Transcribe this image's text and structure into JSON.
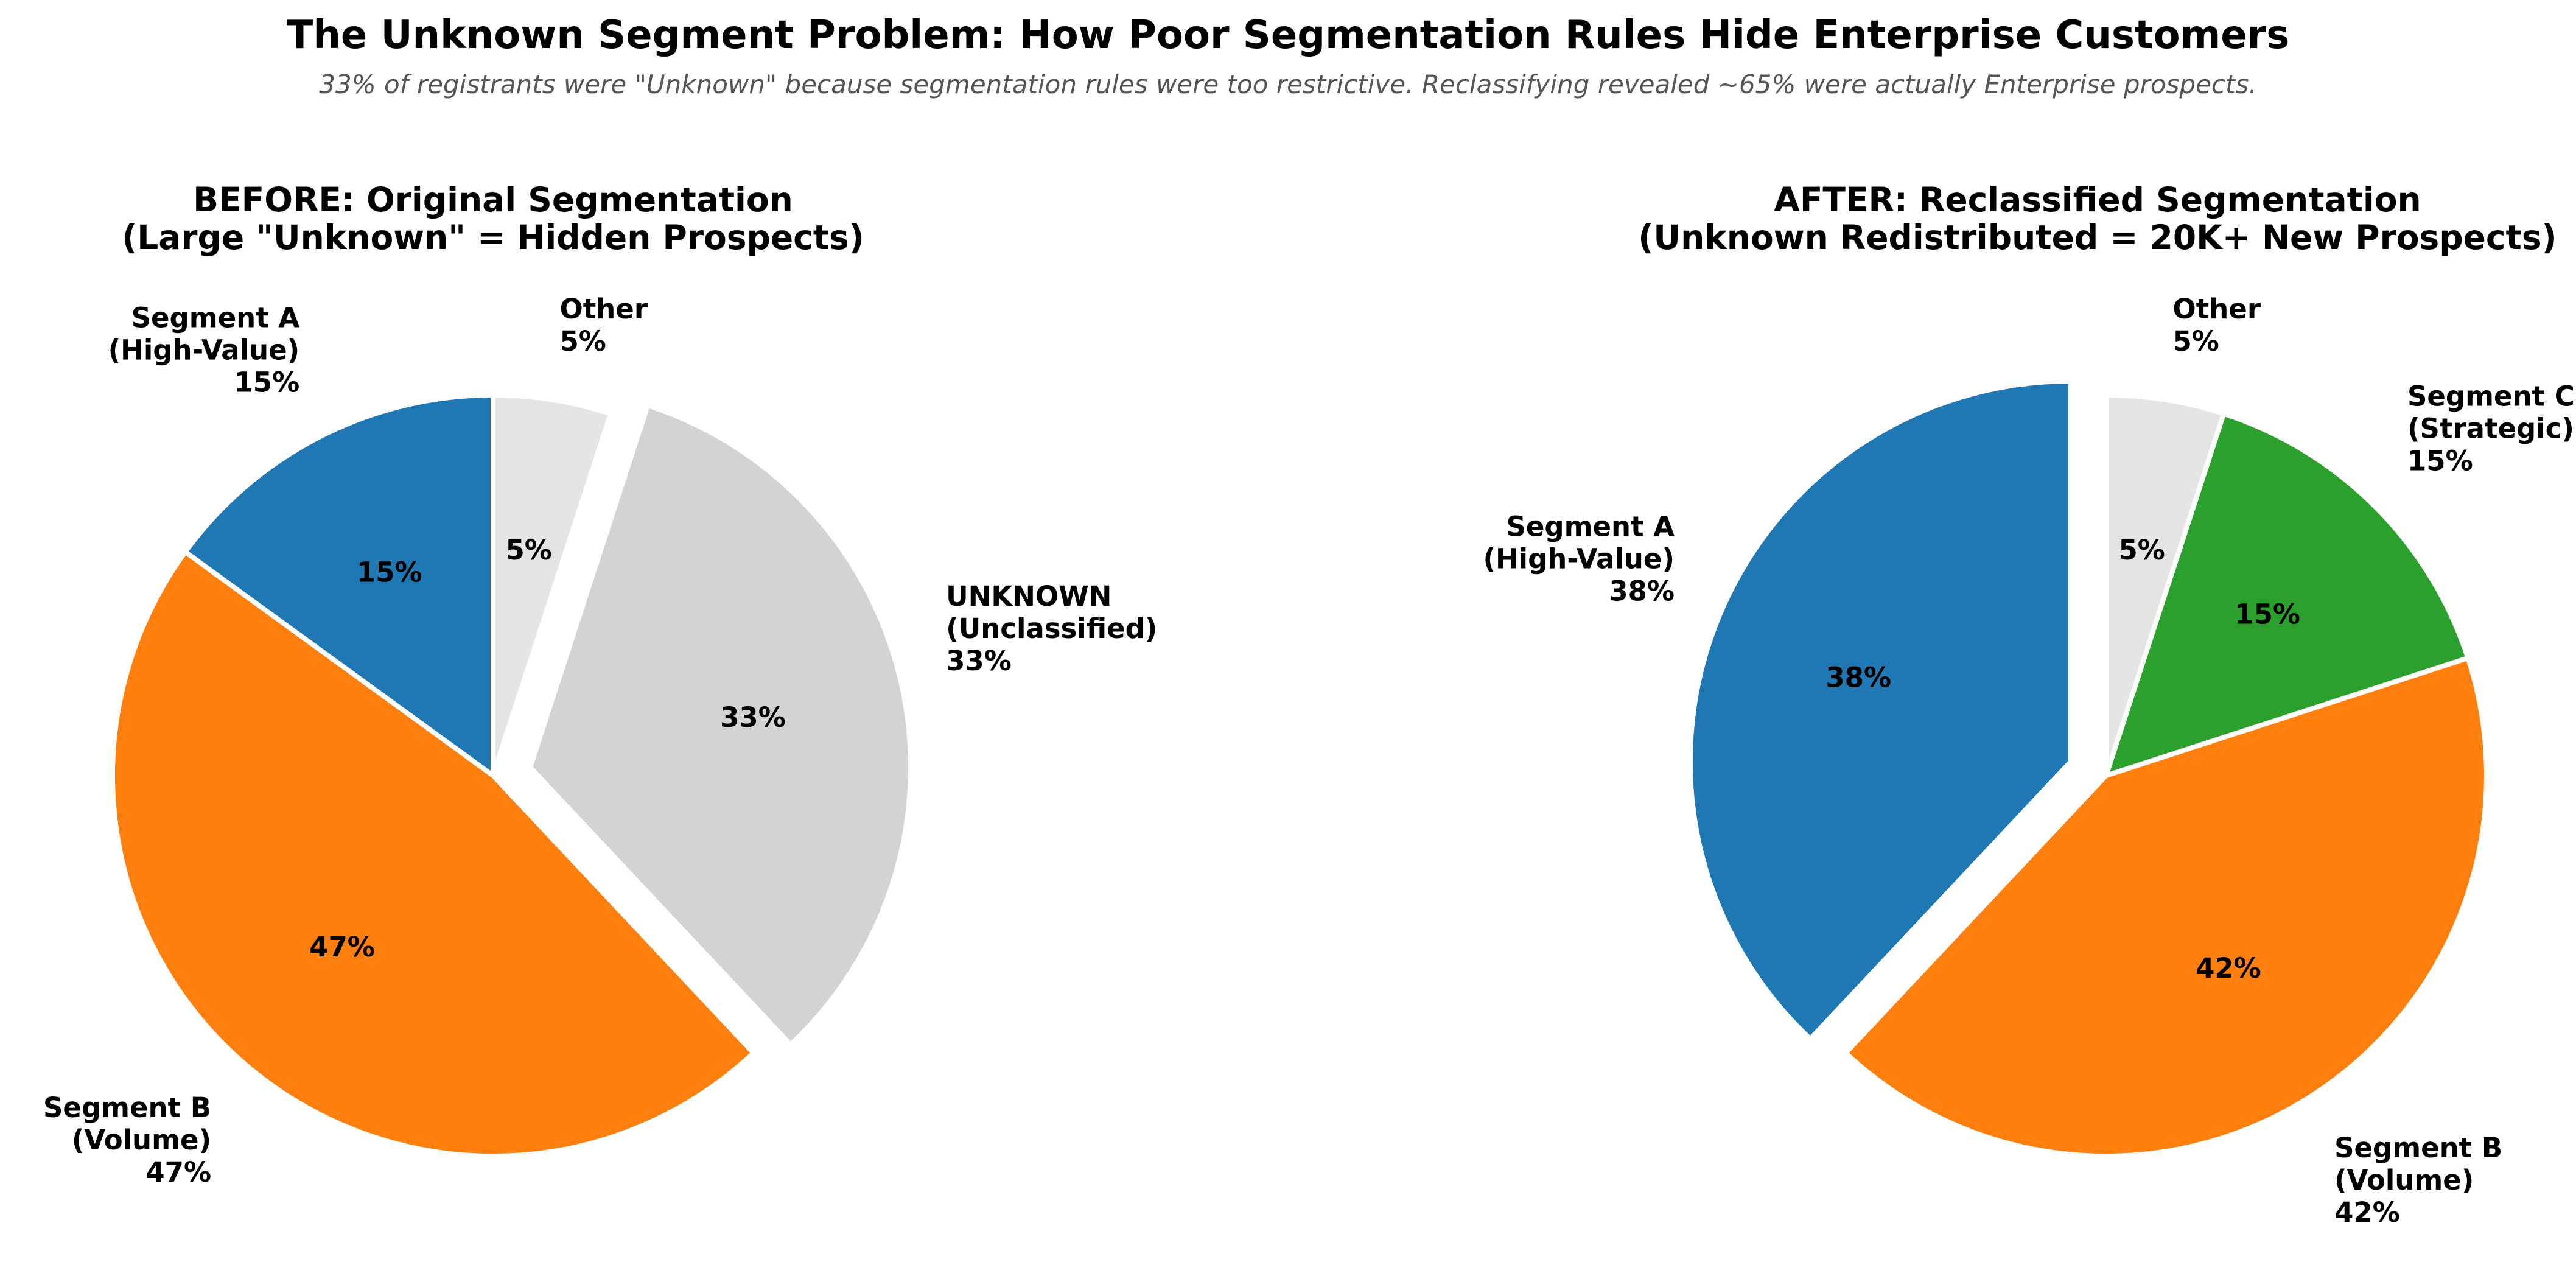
{
  "title": "The Unknown Segment Problem: How Poor Segmentation Rules Hide Enterprise Customers",
  "subtitle": "33% of registrants were \"Unknown\" because segmentation rules were too restrictive. Reclassifying revealed ~65% were actually Enterprise prospects.",
  "chart_data": [
    {
      "type": "pie",
      "title": "BEFORE: Original Segmentation",
      "subtitle": "(Large \"Unknown\" = Hidden Prospects)",
      "start_angle": "top, counter-clockwise",
      "slices": [
        {
          "label": [
            "Segment A",
            "(High-Value)",
            "15%"
          ],
          "value": 15,
          "pct_label": "15%",
          "color": "#1f77b4",
          "exploded": false
        },
        {
          "label": [
            "Segment B",
            "(Volume)",
            "47%"
          ],
          "value": 47,
          "pct_label": "47%",
          "color": "#ff7f0e",
          "exploded": false
        },
        {
          "label": [
            "UNKNOWN",
            "(Unclassified)",
            "33%"
          ],
          "value": 33,
          "pct_label": "33%",
          "color": "#d3d3d3",
          "exploded": true
        },
        {
          "label": [
            "Other",
            "5%"
          ],
          "value": 5,
          "pct_label": "5%",
          "color": "#e5e5e5",
          "exploded": false
        }
      ]
    },
    {
      "type": "pie",
      "title": "AFTER: Reclassified Segmentation",
      "subtitle": "(Unknown Redistributed = 20K+ New Prospects)",
      "start_angle": "top, counter-clockwise",
      "slices": [
        {
          "label": [
            "Segment A",
            "(High-Value)",
            "38%"
          ],
          "value": 38,
          "pct_label": "38%",
          "color": "#1f77b4",
          "exploded": true
        },
        {
          "label": [
            "Segment B",
            "(Volume)",
            "42%"
          ],
          "value": 42,
          "pct_label": "42%",
          "color": "#ff7f0e",
          "exploded": false
        },
        {
          "label": [
            "Segment C",
            "(Strategic)",
            "15%"
          ],
          "value": 15,
          "pct_label": "15%",
          "color": "#2ca02c",
          "exploded": false
        },
        {
          "label": [
            "Other",
            "5%"
          ],
          "value": 5,
          "pct_label": "5%",
          "color": "#e5e5e5",
          "exploded": false
        }
      ]
    }
  ]
}
